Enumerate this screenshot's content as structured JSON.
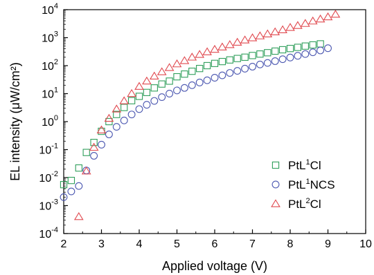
{
  "chart_data": {
    "type": "scatter",
    "xlabel": "Applied voltage (V)",
    "ylabel": "EL intensity (μW/cm²)",
    "xlim": [
      2,
      10
    ],
    "ylim_log10": [
      -4,
      4
    ],
    "y_scale": "log",
    "grid": false,
    "legend_position": "bottom-right",
    "x_ticks": [
      "2",
      "3",
      "4",
      "5",
      "6",
      "7",
      "8",
      "9",
      "10"
    ],
    "y_ticks": [
      {
        "base": "10",
        "exp": "-4"
      },
      {
        "base": "10",
        "exp": "-3"
      },
      {
        "base": "10",
        "exp": "-2"
      },
      {
        "base": "10",
        "exp": "-1"
      },
      {
        "base": "10",
        "exp": "0"
      },
      {
        "base": "10",
        "exp": "1"
      },
      {
        "base": "10",
        "exp": "2"
      },
      {
        "base": "10",
        "exp": "3"
      },
      {
        "base": "10",
        "exp": "4"
      }
    ],
    "series": [
      {
        "name_parts": [
          "PtL",
          "1",
          "Cl"
        ],
        "marker": "square",
        "color": "#2e9e5a",
        "points": [
          [
            2.0,
            0.0056
          ],
          [
            2.2,
            0.0079
          ],
          [
            2.4,
            0.022
          ],
          [
            2.6,
            0.079
          ],
          [
            2.8,
            0.18
          ],
          [
            3.0,
            0.45
          ],
          [
            3.2,
            1.0
          ],
          [
            3.4,
            1.8
          ],
          [
            3.6,
            3.2
          ],
          [
            3.8,
            5.6
          ],
          [
            4.0,
            8.0
          ],
          [
            4.2,
            11
          ],
          [
            4.4,
            16
          ],
          [
            4.6,
            22
          ],
          [
            4.8,
            28
          ],
          [
            5.0,
            40
          ],
          [
            5.2,
            50
          ],
          [
            5.4,
            63
          ],
          [
            5.6,
            79
          ],
          [
            5.8,
            100
          ],
          [
            6.0,
            120
          ],
          [
            6.2,
            140
          ],
          [
            6.4,
            160
          ],
          [
            6.6,
            180
          ],
          [
            6.8,
            200
          ],
          [
            7.0,
            230
          ],
          [
            7.2,
            260
          ],
          [
            7.4,
            290
          ],
          [
            7.6,
            330
          ],
          [
            7.8,
            370
          ],
          [
            8.0,
            410
          ],
          [
            8.2,
            450
          ],
          [
            8.4,
            500
          ],
          [
            8.6,
            550
          ],
          [
            8.8,
            600
          ]
        ]
      },
      {
        "name_parts": [
          "PtL",
          "1",
          "NCS"
        ],
        "marker": "circle",
        "color": "#4a56b0",
        "points": [
          [
            2.0,
            0.002
          ],
          [
            2.2,
            0.0032
          ],
          [
            2.4,
            0.005
          ],
          [
            2.6,
            0.018
          ],
          [
            2.8,
            0.06
          ],
          [
            3.0,
            0.15
          ],
          [
            3.2,
            0.35
          ],
          [
            3.4,
            0.65
          ],
          [
            3.6,
            1.1
          ],
          [
            3.8,
            1.8
          ],
          [
            4.0,
            2.8
          ],
          [
            4.2,
            4.0
          ],
          [
            4.4,
            5.5
          ],
          [
            4.6,
            7.5
          ],
          [
            4.8,
            10
          ],
          [
            5.0,
            13
          ],
          [
            5.2,
            16
          ],
          [
            5.4,
            20
          ],
          [
            5.6,
            25
          ],
          [
            5.8,
            30
          ],
          [
            6.0,
            37
          ],
          [
            6.2,
            45
          ],
          [
            6.4,
            55
          ],
          [
            6.6,
            65
          ],
          [
            6.8,
            78
          ],
          [
            7.0,
            92
          ],
          [
            7.2,
            110
          ],
          [
            7.4,
            125
          ],
          [
            7.6,
            145
          ],
          [
            7.8,
            170
          ],
          [
            8.0,
            195
          ],
          [
            8.2,
            225
          ],
          [
            8.4,
            260
          ],
          [
            8.6,
            300
          ],
          [
            8.8,
            350
          ],
          [
            9.0,
            420
          ]
        ]
      },
      {
        "name_parts": [
          "PtL",
          "2",
          "Cl"
        ],
        "marker": "triangle",
        "color": "#e0484e",
        "points": [
          [
            2.4,
            0.0004
          ],
          [
            2.6,
            0.017
          ],
          [
            2.8,
            0.12
          ],
          [
            3.0,
            0.5
          ],
          [
            3.2,
            1.3
          ],
          [
            3.4,
            2.8
          ],
          [
            3.6,
            5.5
          ],
          [
            3.8,
            10
          ],
          [
            4.0,
            18
          ],
          [
            4.2,
            28
          ],
          [
            4.4,
            42
          ],
          [
            4.6,
            60
          ],
          [
            4.8,
            85
          ],
          [
            5.0,
            115
          ],
          [
            5.2,
            150
          ],
          [
            5.4,
            200
          ],
          [
            5.6,
            250
          ],
          [
            5.8,
            310
          ],
          [
            6.0,
            380
          ],
          [
            6.2,
            460
          ],
          [
            6.4,
            560
          ],
          [
            6.6,
            680
          ],
          [
            6.8,
            820
          ],
          [
            7.0,
            980
          ],
          [
            7.2,
            1150
          ],
          [
            7.4,
            1350
          ],
          [
            7.6,
            1600
          ],
          [
            7.8,
            1900
          ],
          [
            8.0,
            2300
          ],
          [
            8.2,
            2700
          ],
          [
            8.4,
            3200
          ],
          [
            8.6,
            3900
          ],
          [
            8.8,
            4600
          ],
          [
            9.0,
            5500
          ],
          [
            9.2,
            6800
          ]
        ]
      }
    ]
  }
}
